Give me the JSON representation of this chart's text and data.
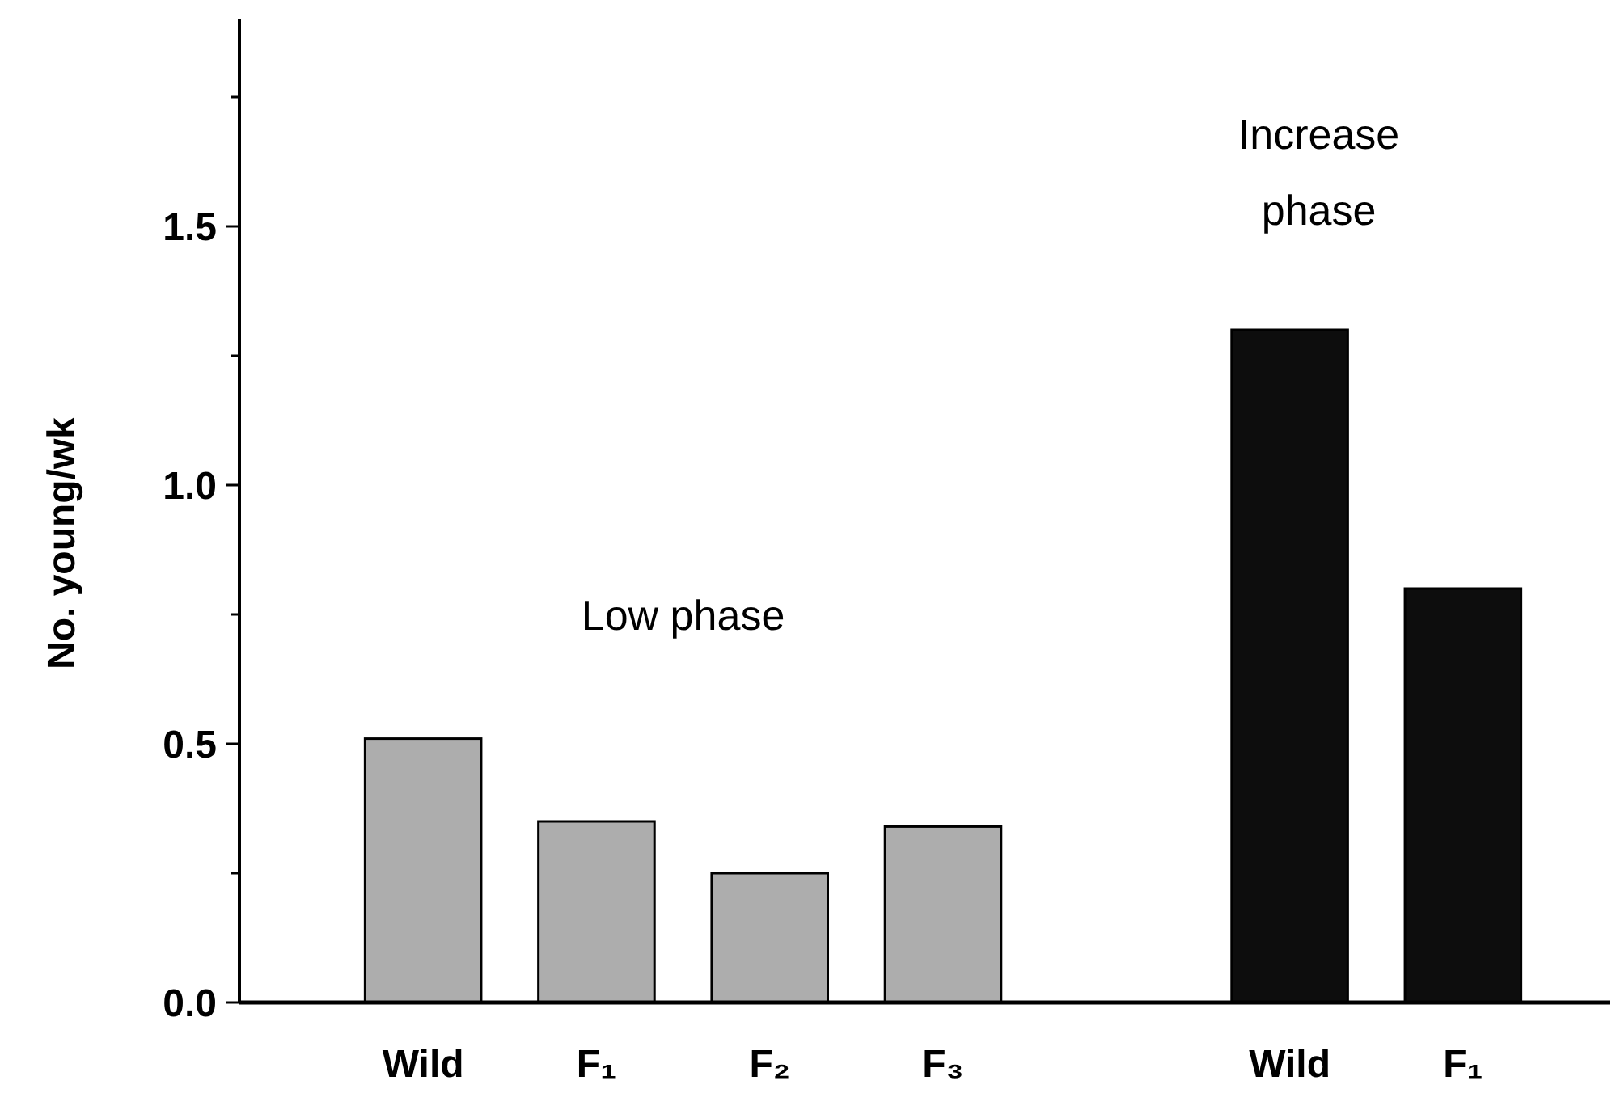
{
  "chart_data": {
    "type": "bar",
    "ylabel": "No. young/wk",
    "categories": [
      "Wild",
      "F₁",
      "F₂",
      "F₃",
      null,
      "Wild",
      "F₁"
    ],
    "values": [
      0.51,
      0.35,
      0.25,
      0.34,
      null,
      1.3,
      0.8
    ],
    "colors": [
      "#adadad",
      "#adadad",
      "#adadad",
      "#adadad",
      null,
      "#0d0d0d",
      "#0d0d0d"
    ],
    "ylim": [
      0,
      1.9
    ],
    "yticks": [
      {
        "value": 0,
        "label": "0.0"
      },
      {
        "value": 0.25,
        "label": null
      },
      0.5,
      {
        "value": 0.75,
        "label": null
      },
      {
        "value": 1,
        "label": "1.0"
      },
      {
        "value": 1.25,
        "label": null
      },
      1.5,
      {
        "value": 1.75,
        "label": null
      }
    ],
    "annotations": [
      "Low phase",
      "Increase phase"
    ],
    "grid": false
  }
}
